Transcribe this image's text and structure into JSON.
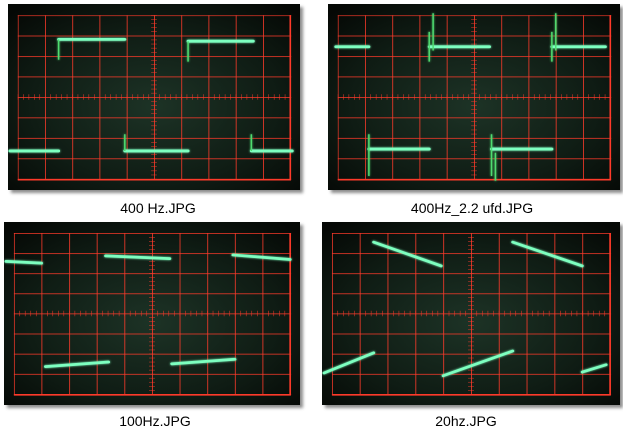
{
  "images": [
    {
      "caption": "400 Hz.JPG"
    },
    {
      "caption": "400Hz_2.2 ufd.JPG"
    },
    {
      "caption": "100Hz.JPG"
    },
    {
      "caption": "20hz.JPG"
    }
  ]
}
